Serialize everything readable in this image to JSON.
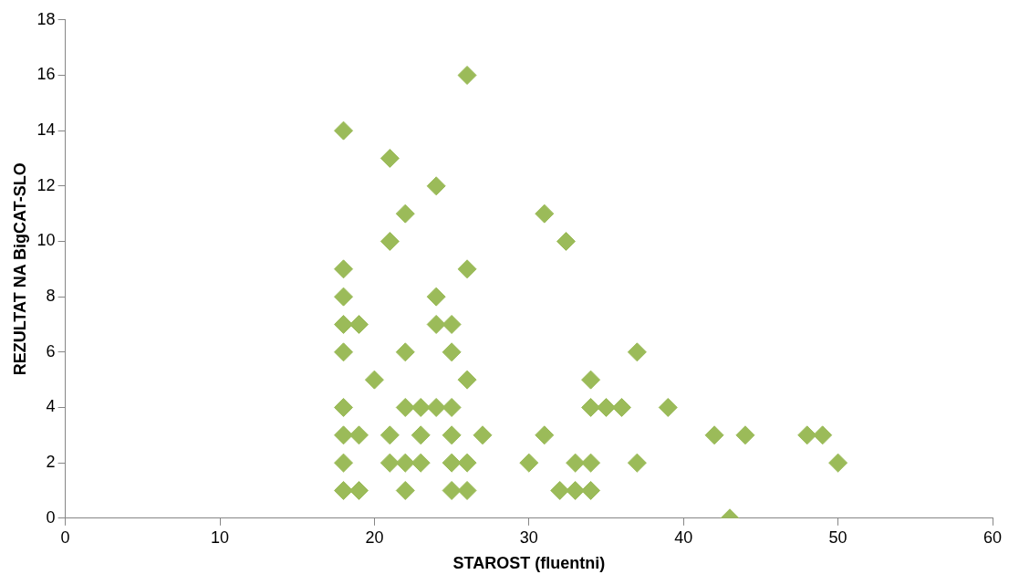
{
  "chart_data": {
    "type": "scatter",
    "xlabel": "STAROST (fluentni)",
    "ylabel": "REZULTAT NA BigCAT-SLO",
    "xlim": [
      0,
      60
    ],
    "xticks": [
      0,
      10,
      20,
      30,
      40,
      50,
      60
    ],
    "ylim": [
      0,
      18
    ],
    "yticks": [
      0,
      2,
      4,
      6,
      8,
      10,
      12,
      14,
      16,
      18
    ],
    "grid": false,
    "legend": false,
    "marker": "diamond",
    "series": [
      {
        "color": "#9bbb59",
        "x": [
          18,
          18,
          18,
          18,
          18,
          18,
          18,
          18,
          18,
          19,
          19,
          19,
          20,
          21,
          21,
          21,
          21,
          22,
          22,
          22,
          22,
          22,
          23,
          23,
          23,
          24,
          24,
          24,
          24,
          25,
          25,
          25,
          25,
          25,
          25,
          26,
          26,
          26,
          26,
          26,
          27,
          30,
          31,
          31,
          32.4,
          32,
          33,
          33,
          34,
          34,
          34,
          34,
          35,
          36,
          37,
          37,
          39,
          42,
          43,
          44,
          48,
          49,
          50
        ],
        "values": [
          14,
          9,
          8,
          7,
          6,
          4,
          3,
          2,
          1,
          7,
          3,
          1,
          5,
          13,
          10,
          3,
          2,
          11,
          6,
          4,
          2,
          1,
          4,
          3,
          2,
          12,
          8,
          7,
          4,
          7,
          6,
          4,
          3,
          2,
          1,
          16,
          9,
          5,
          2,
          1,
          3,
          2,
          11,
          3,
          10,
          1,
          2,
          1,
          5,
          4,
          2,
          1,
          4,
          4,
          6,
          2,
          4,
          3,
          0,
          3,
          3,
          3,
          2
        ]
      }
    ]
  }
}
